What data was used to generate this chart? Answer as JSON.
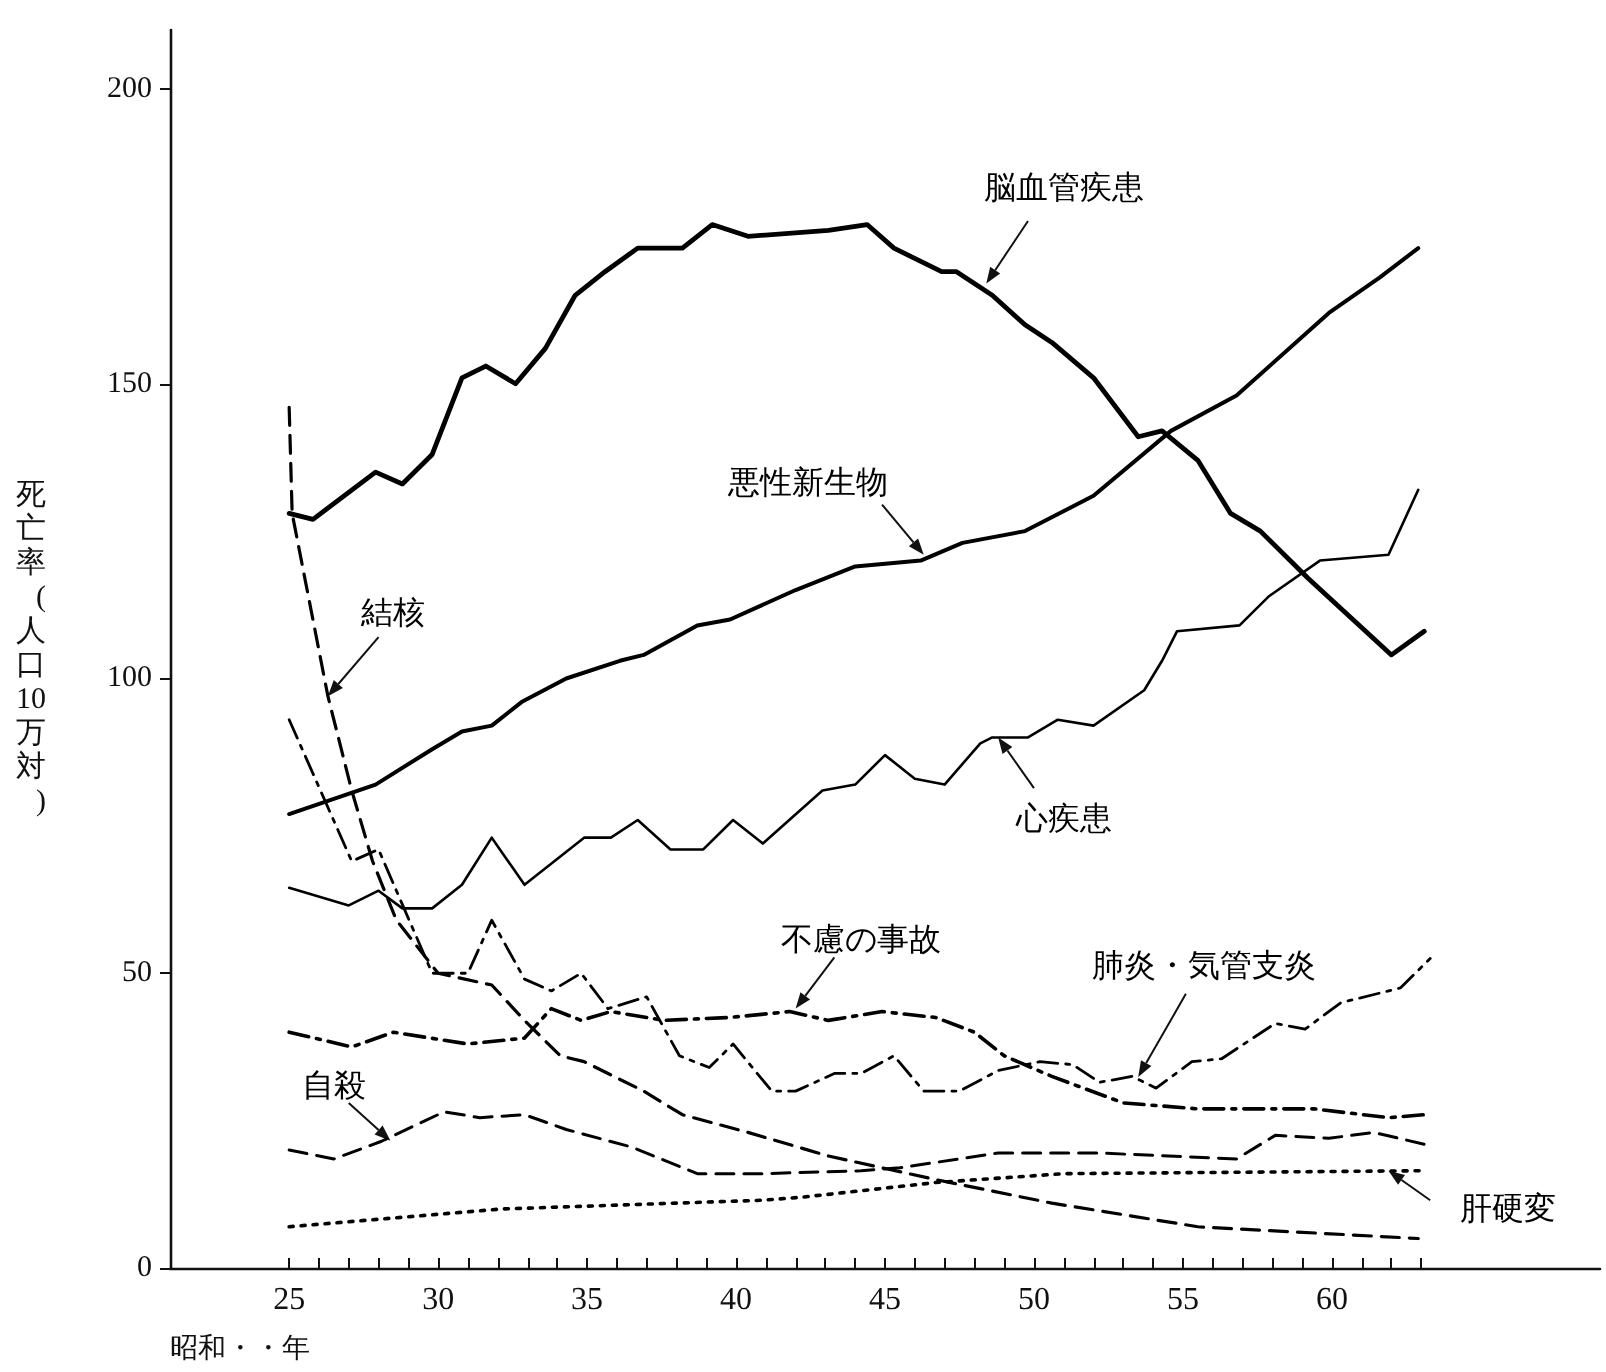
{
  "chart_data": {
    "type": "line",
    "xlabel": "昭和・・年",
    "ylabel": "死亡率(人口10万対)",
    "xlim": [
      21,
      69
    ],
    "ylim": [
      0,
      210
    ],
    "xticks": [
      {
        "value": 25,
        "label": "25"
      },
      {
        "value": 26,
        "label": null
      },
      {
        "value": 27,
        "label": null
      },
      {
        "value": 28,
        "label": null
      },
      {
        "value": 29,
        "label": null
      },
      {
        "value": 30,
        "label": "30"
      },
      {
        "value": 31,
        "label": null
      },
      {
        "value": 32,
        "label": null
      },
      {
        "value": 33,
        "label": null
      },
      {
        "value": 34,
        "label": null
      },
      {
        "value": 35,
        "label": "35"
      },
      {
        "value": 36,
        "label": null
      },
      {
        "value": 37,
        "label": null
      },
      {
        "value": 38,
        "label": null
      },
      {
        "value": 39,
        "label": null
      },
      {
        "value": 40,
        "label": "40"
      },
      {
        "value": 41,
        "label": null
      },
      {
        "value": 42,
        "label": null
      },
      {
        "value": 43,
        "label": null
      },
      {
        "value": 44,
        "label": null
      },
      {
        "value": 45,
        "label": "45"
      },
      {
        "value": 46,
        "label": null
      },
      {
        "value": 47,
        "label": null
      },
      {
        "value": 48,
        "label": null
      },
      {
        "value": 49,
        "label": null
      },
      {
        "value": 50,
        "label": "50"
      },
      {
        "value": 51,
        "label": null
      },
      {
        "value": 52,
        "label": null
      },
      {
        "value": 53,
        "label": null
      },
      {
        "value": 54,
        "label": null
      },
      {
        "value": 55,
        "label": "55"
      },
      {
        "value": 56,
        "label": null
      },
      {
        "value": 57,
        "label": null
      },
      {
        "value": 58,
        "label": null
      },
      {
        "value": 59,
        "label": null
      },
      {
        "value": 60,
        "label": "60"
      },
      {
        "value": 61,
        "label": null
      },
      {
        "value": 62,
        "label": null
      },
      {
        "value": 63,
        "label": null
      }
    ],
    "yticks": [
      0,
      50,
      100,
      150,
      200
    ],
    "grid": false,
    "marker": "none",
    "series": [
      {
        "name": "脳血管疾患",
        "color": "#000000",
        "line_style": "solid",
        "x": [
          25,
          25.8,
          27.9,
          28.8,
          29.8,
          30.8,
          31.6,
          32.6,
          33.6,
          34.6,
          35.6,
          36.7,
          38.2,
          39.2,
          40.4,
          43.1,
          44.4,
          45.3,
          46.9,
          47.4,
          48.6,
          49.7,
          50.6,
          52,
          53.5,
          54.3,
          55.5,
          56.6,
          57.6,
          59.2,
          62,
          63.1
        ],
        "values": [
          128,
          127,
          135,
          133,
          138,
          151,
          153,
          150,
          156,
          165,
          169,
          173,
          173,
          177,
          175,
          176,
          177,
          173,
          169,
          169,
          165,
          160,
          157,
          151,
          141,
          142,
          137,
          128,
          125,
          117,
          104,
          108
        ]
      },
      {
        "name": "悪性新生物",
        "color": "#000000",
        "line_style": "solid",
        "x": [
          25,
          27.9,
          29.8,
          30.8,
          31.8,
          32.8,
          34.3,
          36.1,
          36.9,
          38.7,
          39.8,
          42,
          44,
          46.2,
          47.6,
          49.7,
          52,
          54.6,
          56.8,
          59.9,
          61.6,
          62.9
        ],
        "values": [
          77,
          82,
          88,
          91,
          92,
          96,
          100,
          103,
          104,
          109,
          110,
          115,
          119,
          120,
          123,
          125,
          131,
          142,
          148,
          162,
          168,
          173
        ]
      },
      {
        "name": "心疾患",
        "color": "#000000",
        "line_style": "solid",
        "x": [
          25,
          27,
          28,
          28.8,
          29.8,
          30.8,
          31.8,
          32.9,
          34.9,
          35.8,
          36.7,
          37.8,
          38.9,
          39.9,
          40.9,
          42.9,
          44,
          45,
          46,
          47,
          48.2,
          48.6,
          49.8,
          50.8,
          52,
          53.7,
          54.3,
          54.8,
          56.9,
          57.9,
          59.6,
          61.9,
          62.9
        ],
        "values": [
          64.5,
          61.5,
          64,
          61,
          61,
          65,
          73,
          65,
          73,
          73,
          76,
          71,
          71,
          76,
          72,
          81,
          82,
          87,
          83,
          82,
          89,
          90,
          90,
          93,
          92,
          98,
          103,
          108,
          109,
          114,
          120,
          121,
          132
        ]
      },
      {
        "name": "結核",
        "color": "#000000",
        "line_style": "dashed",
        "x": [
          25,
          25.1,
          26.3,
          27.1,
          27.8,
          28.6,
          30,
          31.8,
          32.9,
          34.1,
          34.9,
          36.9,
          38.2,
          40.4,
          43.1,
          44.9,
          46.7,
          50.6,
          55.5,
          62.9
        ],
        "values": [
          146,
          128,
          97,
          81,
          69,
          59,
          50,
          48,
          42,
          36,
          35,
          30,
          26,
          23,
          19,
          17,
          15,
          11,
          7,
          5
        ]
      },
      {
        "name": "肺炎・気管支炎",
        "color": "#000000",
        "line_style": "dashdot",
        "x": [
          25,
          27.1,
          28,
          28.6,
          29.8,
          31,
          31.8,
          32.9,
          33.8,
          34.8,
          35.7,
          37,
          38.1,
          39.1,
          39.9,
          41.2,
          42,
          43.3,
          44.2,
          45.3,
          46.3,
          47.5,
          48.8,
          50.2,
          51.3,
          52.2,
          53.3,
          54.1,
          55.3,
          56.3,
          58.1,
          59.1,
          60.3,
          62.3,
          63.3
        ],
        "values": [
          93,
          69,
          71,
          64,
          50,
          50,
          59,
          49,
          47,
          50,
          44,
          46,
          36,
          34,
          38,
          30,
          30,
          33,
          33,
          36,
          30,
          30,
          33.5,
          35,
          34.5,
          31.5,
          32.5,
          30.5,
          35,
          35.5,
          41.5,
          40.5,
          45,
          47.5,
          52.5
        ]
      },
      {
        "name": "不慮の事故",
        "color": "#000000",
        "line_style": "dashdot",
        "x": [
          25,
          27.1,
          28.5,
          31,
          32.9,
          33.8,
          34.8,
          35.8,
          37.6,
          39.8,
          41.8,
          43.1,
          44.9,
          46.7,
          48,
          49,
          50.6,
          53,
          55.5,
          59.4,
          61.9,
          63.1
        ],
        "values": [
          40,
          37.5,
          40,
          38,
          39,
          44,
          42,
          43.5,
          42,
          42.5,
          43.5,
          42,
          43.5,
          42.5,
          40,
          36,
          32.5,
          28,
          27,
          27,
          25.5,
          26
        ]
      },
      {
        "name": "自殺",
        "color": "#000000",
        "line_style": "dashed",
        "x": [
          25,
          26.5,
          28.1,
          30.2,
          31.4,
          32.9,
          34.3,
          36.5,
          38.7,
          40.9,
          44.2,
          45.5,
          48.8,
          52.2,
          56.8,
          58.1,
          59.9,
          61.4,
          63.1
        ],
        "values": [
          20,
          18.5,
          21.5,
          26.5,
          25.5,
          26,
          23.5,
          20.5,
          16,
          16,
          16.5,
          17,
          19.5,
          19.5,
          18.5,
          22.5,
          22,
          23,
          21
        ]
      },
      {
        "name": "肝硬変",
        "color": "#000000",
        "line_style": "dotted",
        "x": [
          25,
          32.1,
          40.9,
          42.2,
          46.7,
          51,
          63.1
        ],
        "values": [
          7,
          10,
          11.5,
          12,
          14.5,
          16,
          16.5
        ]
      }
    ]
  }
}
